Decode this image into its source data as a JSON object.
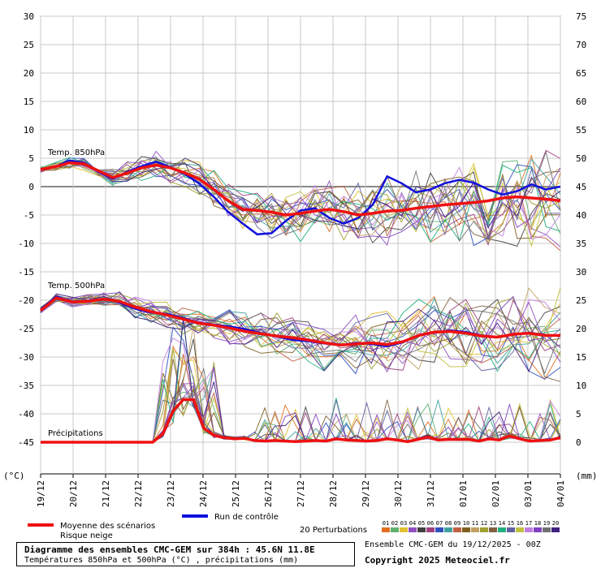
{
  "chart_data": {
    "type": "line",
    "dates": [
      "19/12",
      "20/12",
      "21/12",
      "22/12",
      "23/12",
      "24/12",
      "25/12",
      "26/12",
      "27/12",
      "28/12",
      "29/12",
      "30/12",
      "31/12",
      "01/01",
      "02/01",
      "03/01",
      "04/01"
    ],
    "left_axis": {
      "unit": "(°C)",
      "range": [
        -50,
        30
      ],
      "ticks": [
        30,
        25,
        20,
        15,
        10,
        5,
        0,
        -5,
        -10,
        -15,
        -20,
        -25,
        -30,
        -35,
        -40,
        -45
      ]
    },
    "right_axis": {
      "unit": "(mm)",
      "range": [
        0,
        75
      ],
      "ticks": [
        75,
        70,
        65,
        60,
        55,
        50,
        45,
        40,
        35,
        30,
        25,
        20,
        15,
        10,
        5,
        0
      ]
    },
    "panels": {
      "t850": "Temp. 850hPa",
      "t500": "Temp. 500hPa",
      "precip": "Précipitations"
    },
    "series_850_mean": [
      3,
      3.5,
      4.2,
      4,
      2.8,
      1.6,
      2.4,
      3.3,
      3.8,
      3.3,
      2.4,
      1.3,
      -0.5,
      -2.5,
      -4,
      -4.2,
      -4.5,
      -5,
      -4.7,
      -4.3,
      -4,
      -4.4,
      -5,
      -4.7,
      -4.3,
      -4.2,
      -3.8,
      -3.5,
      -3.2,
      -3,
      -2.8,
      -2.5,
      -2,
      -1.8,
      -2,
      -2.2,
      -2.5
    ],
    "series_850_control": [
      3,
      3.5,
      4.6,
      4.2,
      2.6,
      1.4,
      2.6,
      3.6,
      4.4,
      3.4,
      2.2,
      0.5,
      -1.8,
      -4.5,
      -6.5,
      -8.4,
      -8.2,
      -6,
      -4.2,
      -3.8,
      -5.5,
      -6.5,
      -5.5,
      -3.2,
      1.8,
      0.6,
      -1,
      -0.5,
      0.6,
      1.2,
      0.7,
      -0.5,
      -1.4,
      -0.8,
      0.4,
      -0.5,
      0
    ],
    "series_500_mean": [
      -21.8,
      -19.6,
      -20.3,
      -20.2,
      -19.8,
      -20.2,
      -21.2,
      -22,
      -22.6,
      -23.3,
      -24,
      -24.4,
      -24.9,
      -25.5,
      -25.9,
      -26.3,
      -26.6,
      -27,
      -27.5,
      -27.9,
      -27.7,
      -27.5,
      -27.8,
      -27.3,
      -26.2,
      -25.6,
      -25.5,
      -25.8,
      -26.3,
      -26.5,
      -26,
      -25.8,
      -26.2,
      -26.2
    ],
    "series_500_control": [
      -21.6,
      -19.4,
      -20.2,
      -20.2,
      -19.7,
      -20.4,
      -21.5,
      -22.2,
      -22.4,
      -23.1,
      -23.9,
      -24.3,
      -24.6,
      -25.1,
      -25.8,
      -26.4,
      -27,
      -27.2,
      -27.6,
      -27.9,
      -27.5,
      -27.7,
      -28.1,
      -27.4,
      -26.2,
      -25.7,
      -25.3,
      -25.6,
      -26.2,
      -26.5,
      -26.1,
      -25.7,
      -26.1,
      -26.3
    ],
    "series_precip_mean": [
      0,
      0,
      0,
      0,
      0,
      0,
      0,
      0,
      0,
      0,
      0,
      0,
      1.5,
      5.5,
      7.5,
      7.5,
      2.5,
      1.2,
      0.8,
      0.6,
      0.7,
      0.3,
      0.2,
      0.3,
      0.2,
      0.1,
      0.2,
      0.3,
      0.2,
      0.6,
      0.4,
      0.3,
      0.2,
      0.3,
      0.6,
      0.4,
      0.1,
      0.5,
      0.9,
      0.4,
      0.5,
      0.5,
      0.5,
      0.2,
      0.6,
      0.4,
      1.1,
      0.6,
      0.2,
      0.3,
      0.4,
      0.8
    ],
    "legend": {
      "mean_label": "Moyenne des scénarios",
      "snow_label": "Risque neige",
      "control_label": "Run de contrôle",
      "perturb_label": "20 Perturbations",
      "perturb_numbers": [
        "01",
        "02",
        "03",
        "04",
        "05",
        "06",
        "07",
        "08",
        "09",
        "10",
        "11",
        "12",
        "13",
        "14",
        "15",
        "16",
        "17",
        "18",
        "19",
        "20"
      ],
      "perturb_colors": [
        "#e07020",
        "#60b070",
        "#e0c030",
        "#9050c0",
        "#404040",
        "#a04080",
        "#3050c0",
        "#40a0a0",
        "#c06040",
        "#806020",
        "#c0a060",
        "#a0a030",
        "#806040",
        "#20b080",
        "#6060a0",
        "#c0c040",
        "#c080e0",
        "#8040c0",
        "#707070",
        "#402080"
      ],
      "mean_color": "#ee1111",
      "control_color": "#1010dd"
    }
  },
  "footer": {
    "title": "Diagramme des ensembles CMC-GEM sur 384h : 45.6N 11.8E",
    "subtitle": "Températures 850hPa et 500hPa (°C) , précipitations (mm)",
    "ensemble_info": "Ensemble CMC-GEM du 19/12/2025 - 00Z",
    "copyright": "Copyright 2025 Meteociel.fr"
  }
}
